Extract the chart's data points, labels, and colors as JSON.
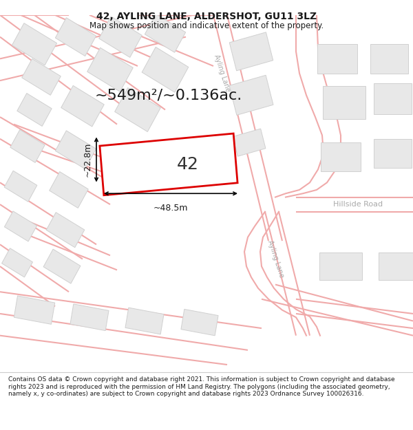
{
  "title": "42, AYLING LANE, ALDERSHOT, GU11 3LZ",
  "subtitle": "Map shows position and indicative extent of the property.",
  "footer": "Contains OS data © Crown copyright and database right 2021. This information is subject to Crown copyright and database rights 2023 and is reproduced with the permission of HM Land Registry. The polygons (including the associated geometry, namely x, y co-ordinates) are subject to Crown copyright and database rights 2023 Ordnance Survey 100026316.",
  "area_text": "~549m²/~0.136ac.",
  "label_42": "42",
  "width_label": "~48.5m",
  "height_label": "~22.8m",
  "road_label_upper": "Ayling Lane",
  "road_label_lower": "Ayling Lane",
  "road_label_hillside": "Hillside Road",
  "bg_color": "#ffffff",
  "map_bg": "#faf5f5",
  "road_line_color": "#f0aaaa",
  "building_fill": "#e8e8e8",
  "building_edge": "#d0d0d0",
  "highlight_color": "#dd0000",
  "dim_line_color": "#000000",
  "title_fontsize": 10,
  "subtitle_fontsize": 8.5,
  "footer_fontsize": 6.5,
  "area_fontsize": 16,
  "label_fontsize": 18,
  "dim_fontsize": 9,
  "road_label_fontsize": 7,
  "hillside_fontsize": 8
}
